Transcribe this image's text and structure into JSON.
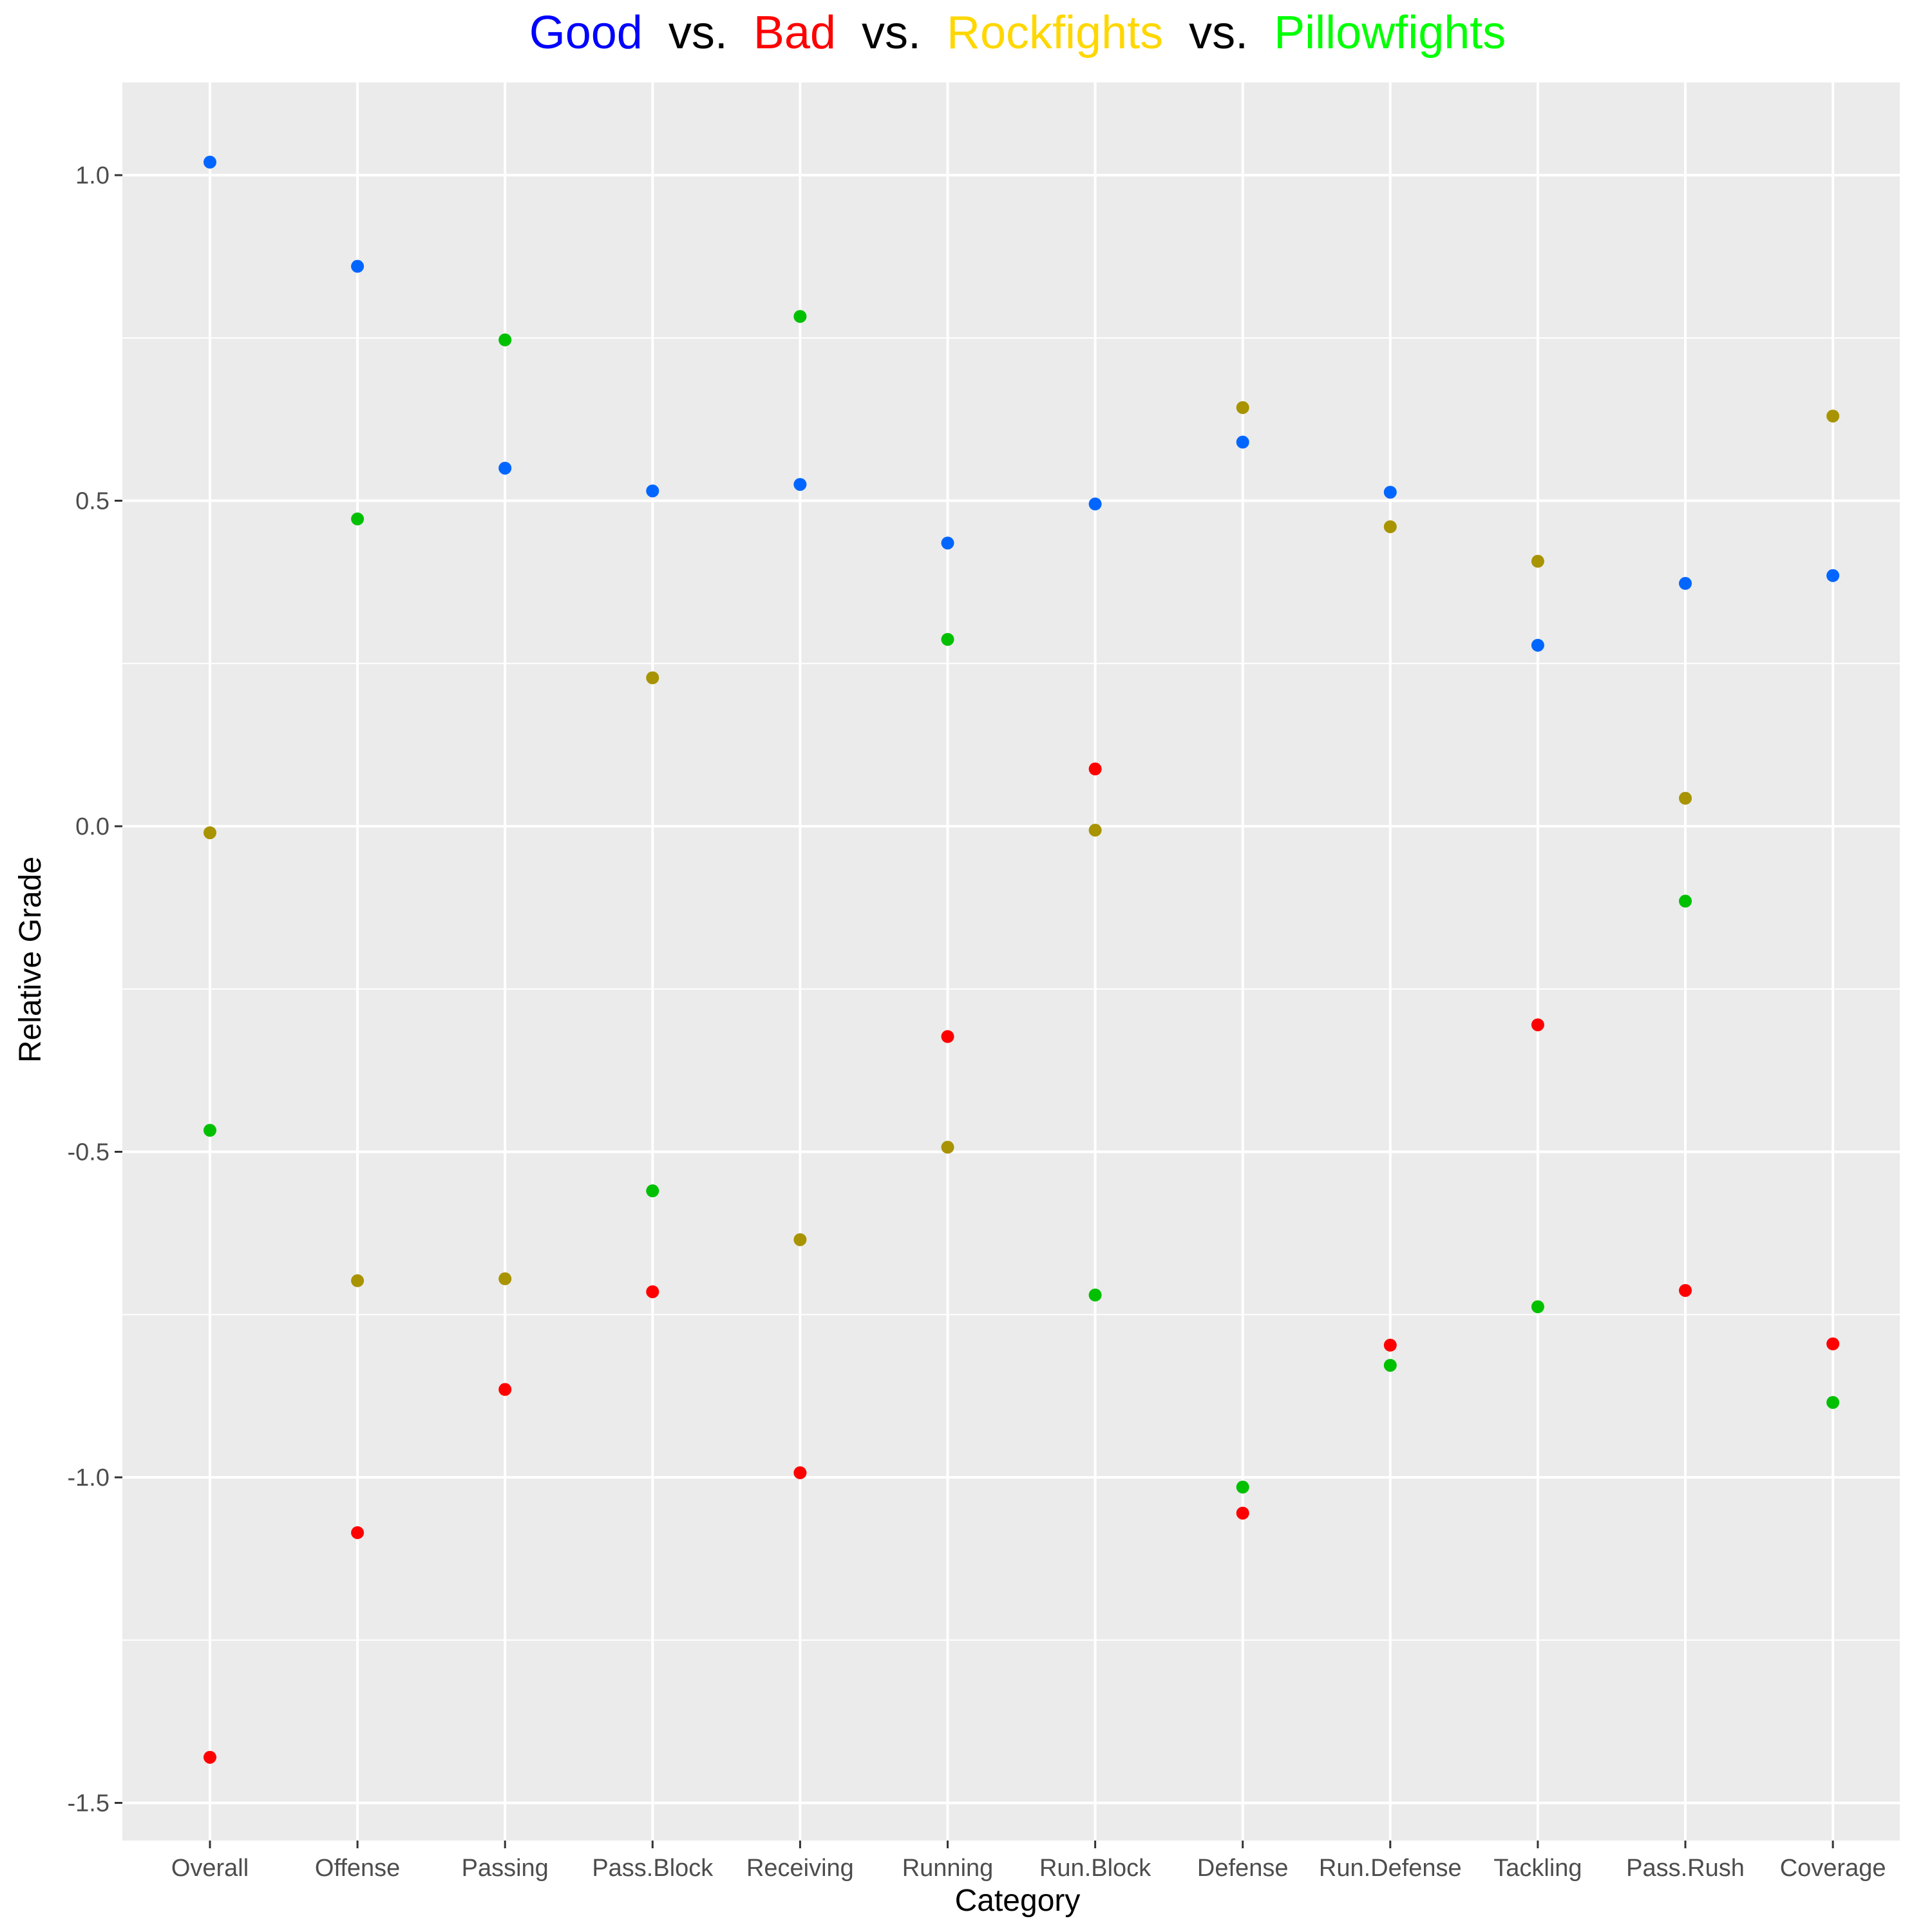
{
  "chart_data": {
    "type": "scatter",
    "title_parts": [
      {
        "text": "Good",
        "color": "#0000ff"
      },
      {
        "text": "vs.",
        "color": "#000000"
      },
      {
        "text": "Bad",
        "color": "#ff0000"
      },
      {
        "text": "vs.",
        "color": "#000000"
      },
      {
        "text": "Rockfights",
        "color": "#ffd700"
      },
      {
        "text": "vs.",
        "color": "#000000"
      },
      {
        "text": "Pillowfights",
        "color": "#00ff00"
      }
    ],
    "xlabel": "Category",
    "ylabel": "Relative Grade",
    "categories": [
      "Overall",
      "Offense",
      "Passing",
      "Pass.Block",
      "Receiving",
      "Running",
      "Run.Block",
      "Defense",
      "Run.Defense",
      "Tackling",
      "Pass.Rush",
      "Coverage"
    ],
    "yticks": [
      1.0,
      0.5,
      0.0,
      -0.5,
      -1.0,
      -1.5
    ],
    "ytick_labels": [
      "1.0",
      "0.5",
      "0.0",
      "-0.5",
      "-1.0",
      "-1.5"
    ],
    "ylim": [
      -1.59,
      1.15
    ],
    "grid": true,
    "panel_background": "#ebebeb",
    "series": [
      {
        "color": "#0066ff",
        "values": [
          1.02,
          0.86,
          0.55,
          0.515,
          0.525,
          0.435,
          0.495,
          0.59,
          0.513,
          0.278,
          0.373,
          0.385
        ]
      },
      {
        "color": "#ff0000",
        "values": [
          -1.43,
          -1.085,
          -0.865,
          -0.715,
          -0.993,
          -0.323,
          0.088,
          -1.055,
          -0.797,
          -0.305,
          -0.713,
          -0.795
        ]
      },
      {
        "color": "#a89300",
        "values": [
          -0.01,
          -0.698,
          -0.695,
          0.228,
          -0.635,
          -0.493,
          -0.006,
          0.643,
          0.46,
          0.407,
          0.043,
          0.63
        ]
      },
      {
        "color": "#00c000",
        "values": [
          -0.467,
          0.472,
          0.747,
          -0.56,
          0.783,
          0.287,
          -0.72,
          -1.015,
          -0.828,
          -0.738,
          -0.115,
          -0.885
        ]
      }
    ]
  }
}
